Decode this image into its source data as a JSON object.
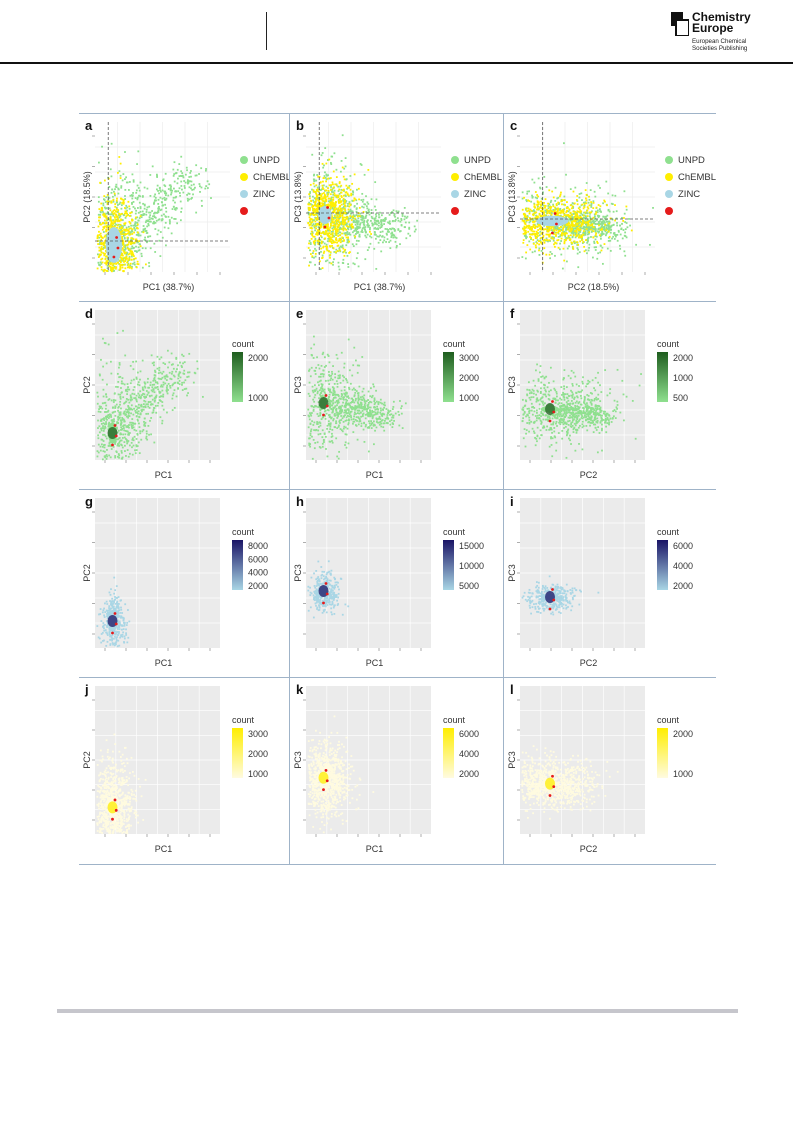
{
  "header": {
    "logo_line1": "Chemistry",
    "logo_line2": "Europe",
    "logo_sub1": "European Chemical",
    "logo_sub2": "Societies Publishing"
  },
  "figure": {
    "legend_items": [
      {
        "label": "UNPD",
        "color": "#8fe08f"
      },
      {
        "label": "ChEMBL",
        "color": "#ffee00"
      },
      {
        "label": "ZINC",
        "color": "#a9d6e5"
      },
      {
        "label": "",
        "color": "#e51b1b"
      }
    ],
    "legend_panel_count": 3,
    "panels": [
      {
        "letter": "a",
        "xlabel": "PC1 (38.7%)",
        "ylabel": "PC2 (18.5%)"
      },
      {
        "letter": "b",
        "xlabel": "PC1 (38.7%)",
        "ylabel": "PC3 (13.8%)"
      },
      {
        "letter": "c",
        "xlabel": "PC2 (18.5%)",
        "ylabel": "PC3 (13.8%)"
      },
      {
        "letter": "d",
        "xlabel": "PC1",
        "ylabel": "PC2",
        "legend_title": "count",
        "ticks": [
          "2000",
          "1000"
        ]
      },
      {
        "letter": "e",
        "xlabel": "PC1",
        "ylabel": "PC3",
        "legend_title": "count",
        "ticks": [
          "3000",
          "2000",
          "1000"
        ]
      },
      {
        "letter": "f",
        "xlabel": "PC2",
        "ylabel": "PC3",
        "legend_title": "count",
        "ticks": [
          "2000",
          "1000",
          "500"
        ]
      },
      {
        "letter": "g",
        "xlabel": "PC1",
        "ylabel": "PC2",
        "legend_title": "count",
        "ticks": [
          "8000",
          "6000",
          "4000",
          "2000"
        ]
      },
      {
        "letter": "h",
        "xlabel": "PC1",
        "ylabel": "PC3",
        "legend_title": "count",
        "ticks": [
          "15000",
          "10000",
          "5000"
        ]
      },
      {
        "letter": "i",
        "xlabel": "PC2",
        "ylabel": "PC3",
        "legend_title": "count",
        "ticks": [
          "6000",
          "4000",
          "2000"
        ]
      },
      {
        "letter": "j",
        "xlabel": "PC1",
        "ylabel": "PC2",
        "legend_title": "count",
        "ticks": [
          "3000",
          "2000",
          "1000"
        ]
      },
      {
        "letter": "k",
        "xlabel": "PC1",
        "ylabel": "PC3",
        "legend_title": "count",
        "ticks": [
          "6000",
          "4000",
          "2000"
        ]
      },
      {
        "letter": "l",
        "xlabel": "PC2",
        "ylabel": "PC3",
        "legend_title": "count",
        "ticks": [
          "2000",
          "1000"
        ]
      }
    ],
    "colormaps": {
      "green": [
        "#1f5e1f",
        "#8fe08f"
      ],
      "blue": [
        "#1a1466",
        "#a9d6e5"
      ],
      "yellow": [
        "#ffee00",
        "#fffbe0"
      ]
    }
  }
}
